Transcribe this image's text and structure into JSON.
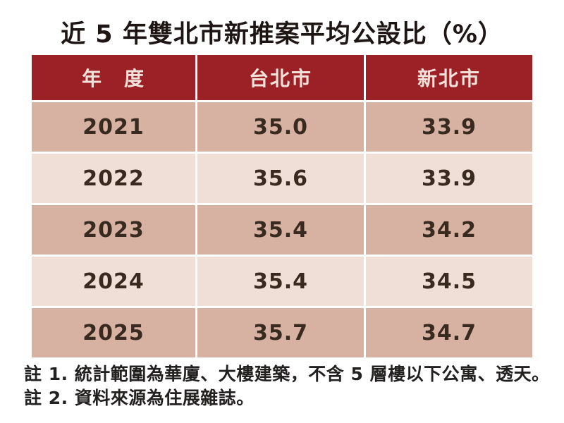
{
  "title": "近 5 年雙北市新推案平均公設比（%）",
  "table": {
    "headers": [
      "年　度",
      "台北市",
      "新北市"
    ],
    "rows": [
      {
        "year": "2021",
        "taipei": "35.0",
        "xinbei": "33.9"
      },
      {
        "year": "2022",
        "taipei": "35.6",
        "xinbei": "33.9"
      },
      {
        "year": "2023",
        "taipei": "35.4",
        "xinbei": "34.2"
      },
      {
        "year": "2024",
        "taipei": "35.4",
        "xinbei": "34.5"
      },
      {
        "year": "2025",
        "taipei": "35.7",
        "xinbei": "34.7"
      }
    ]
  },
  "notes": {
    "note1": "註 1. 統計範圍為華廈、大樓建築，不含 5 層樓以下公寓、透天。",
    "note2": "註 2. 資料來源為住展雜誌。"
  },
  "colors": {
    "header_bg": "#9b2126",
    "header_text": "#f3e2da",
    "row_odd_bg": "#d7b1a2",
    "row_even_bg": "#efdfd7",
    "cell_text": "#392a20",
    "page_bg": "#ffffff"
  },
  "chart_data": {
    "type": "table",
    "title": "近 5 年雙北市新推案平均公設比（%）",
    "columns": [
      "年度",
      "台北市",
      "新北市"
    ],
    "categories": [
      "2021",
      "2022",
      "2023",
      "2024",
      "2025"
    ],
    "series": [
      {
        "name": "台北市",
        "values": [
          35.0,
          35.6,
          35.4,
          35.4,
          35.7
        ]
      },
      {
        "name": "新北市",
        "values": [
          33.9,
          33.9,
          34.2,
          34.5,
          34.7
        ]
      }
    ],
    "unit": "%",
    "notes": [
      "註 1. 統計範圍為華廈、大樓建築，不含 5 層樓以下公寓、透天。",
      "註 2. 資料來源為住展雜誌。"
    ]
  }
}
